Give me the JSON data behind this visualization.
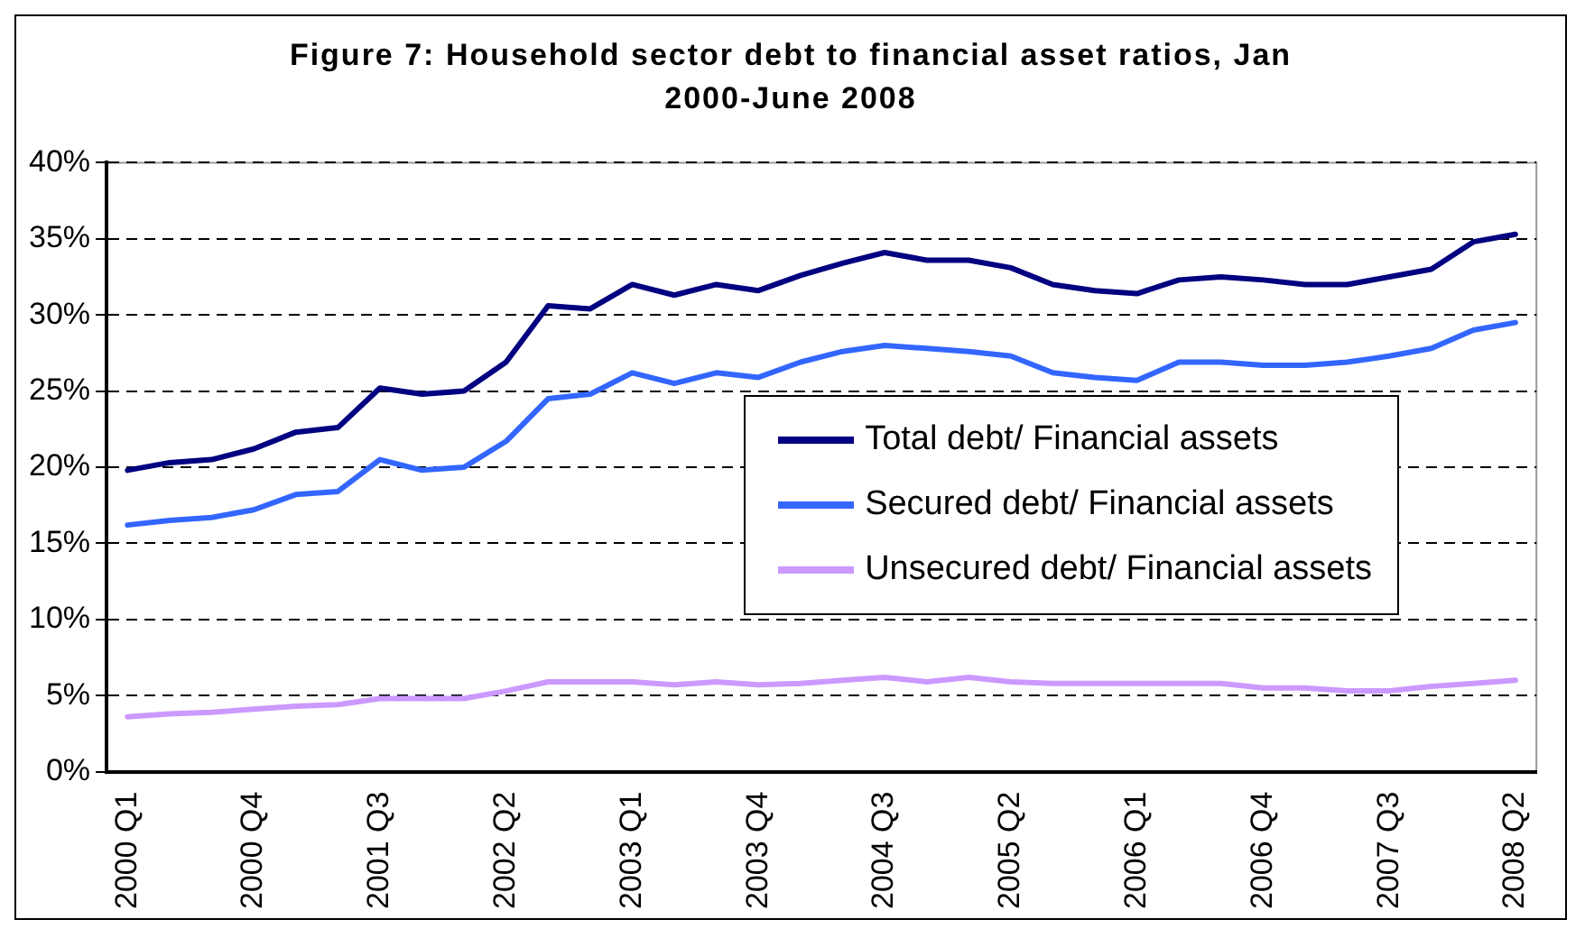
{
  "chart_data": {
    "type": "line",
    "title": "Figure 7: Household sector debt to financial asset ratios, Jan 2000-June 2008",
    "categories": [
      "2000 Q1",
      null,
      null,
      "2000 Q4",
      null,
      null,
      "2001 Q3",
      null,
      null,
      "2002 Q2",
      null,
      null,
      "2003 Q1",
      null,
      null,
      "2003 Q4",
      null,
      null,
      "2004 Q3",
      null,
      null,
      "2005 Q2",
      null,
      null,
      "2006 Q1",
      null,
      null,
      "2006 Q4",
      null,
      null,
      "2007 Q3",
      null,
      null,
      "2008 Q2"
    ],
    "series": [
      {
        "name": "Total debt/ Financial assets",
        "color": "#000080",
        "values": [
          19.8,
          20.3,
          20.5,
          21.2,
          22.3,
          22.6,
          25.2,
          24.8,
          25.0,
          26.9,
          30.6,
          30.4,
          32.0,
          31.3,
          32.0,
          31.6,
          32.6,
          33.4,
          34.1,
          33.6,
          33.6,
          33.1,
          32.0,
          31.6,
          31.4,
          32.3,
          32.5,
          32.3,
          32.0,
          32.0,
          32.5,
          33.0,
          34.8,
          35.3
        ]
      },
      {
        "name": "Secured debt/ Financial assets",
        "color": "#3366ff",
        "values": [
          16.2,
          16.5,
          16.7,
          17.2,
          18.2,
          18.4,
          20.5,
          19.8,
          20.0,
          21.7,
          24.5,
          24.8,
          26.2,
          25.5,
          26.2,
          25.9,
          26.9,
          27.6,
          28.0,
          27.8,
          27.6,
          27.3,
          26.2,
          25.9,
          25.7,
          26.9,
          26.9,
          26.7,
          26.7,
          26.9,
          27.3,
          27.8,
          29.0,
          29.5
        ]
      },
      {
        "name": "Unsecured debt/ Financial assets",
        "color": "#cc99ff",
        "values": [
          3.6,
          3.8,
          3.9,
          4.1,
          4.3,
          4.4,
          4.8,
          4.8,
          4.8,
          5.3,
          5.9,
          5.9,
          5.9,
          5.7,
          5.9,
          5.7,
          5.8,
          6.0,
          6.2,
          5.9,
          6.2,
          5.9,
          5.8,
          5.8,
          5.8,
          5.8,
          5.8,
          5.5,
          5.5,
          5.3,
          5.3,
          5.6,
          5.8,
          6.0
        ]
      }
    ],
    "ylim": [
      0,
      40
    ],
    "yticks": [
      {
        "value": 0,
        "label": "0%"
      },
      {
        "value": 5,
        "label": "5%"
      },
      {
        "value": 10,
        "label": "10%"
      },
      {
        "value": 15,
        "label": "15%"
      },
      {
        "value": 20,
        "label": "20%"
      },
      {
        "value": 25,
        "label": "25%"
      },
      {
        "value": 30,
        "label": "30%"
      },
      {
        "value": 35,
        "label": "35%"
      },
      {
        "value": 40,
        "label": "40%"
      }
    ],
    "grid": "y",
    "legend": "right",
    "marker": "none",
    "line_style": "solid"
  }
}
